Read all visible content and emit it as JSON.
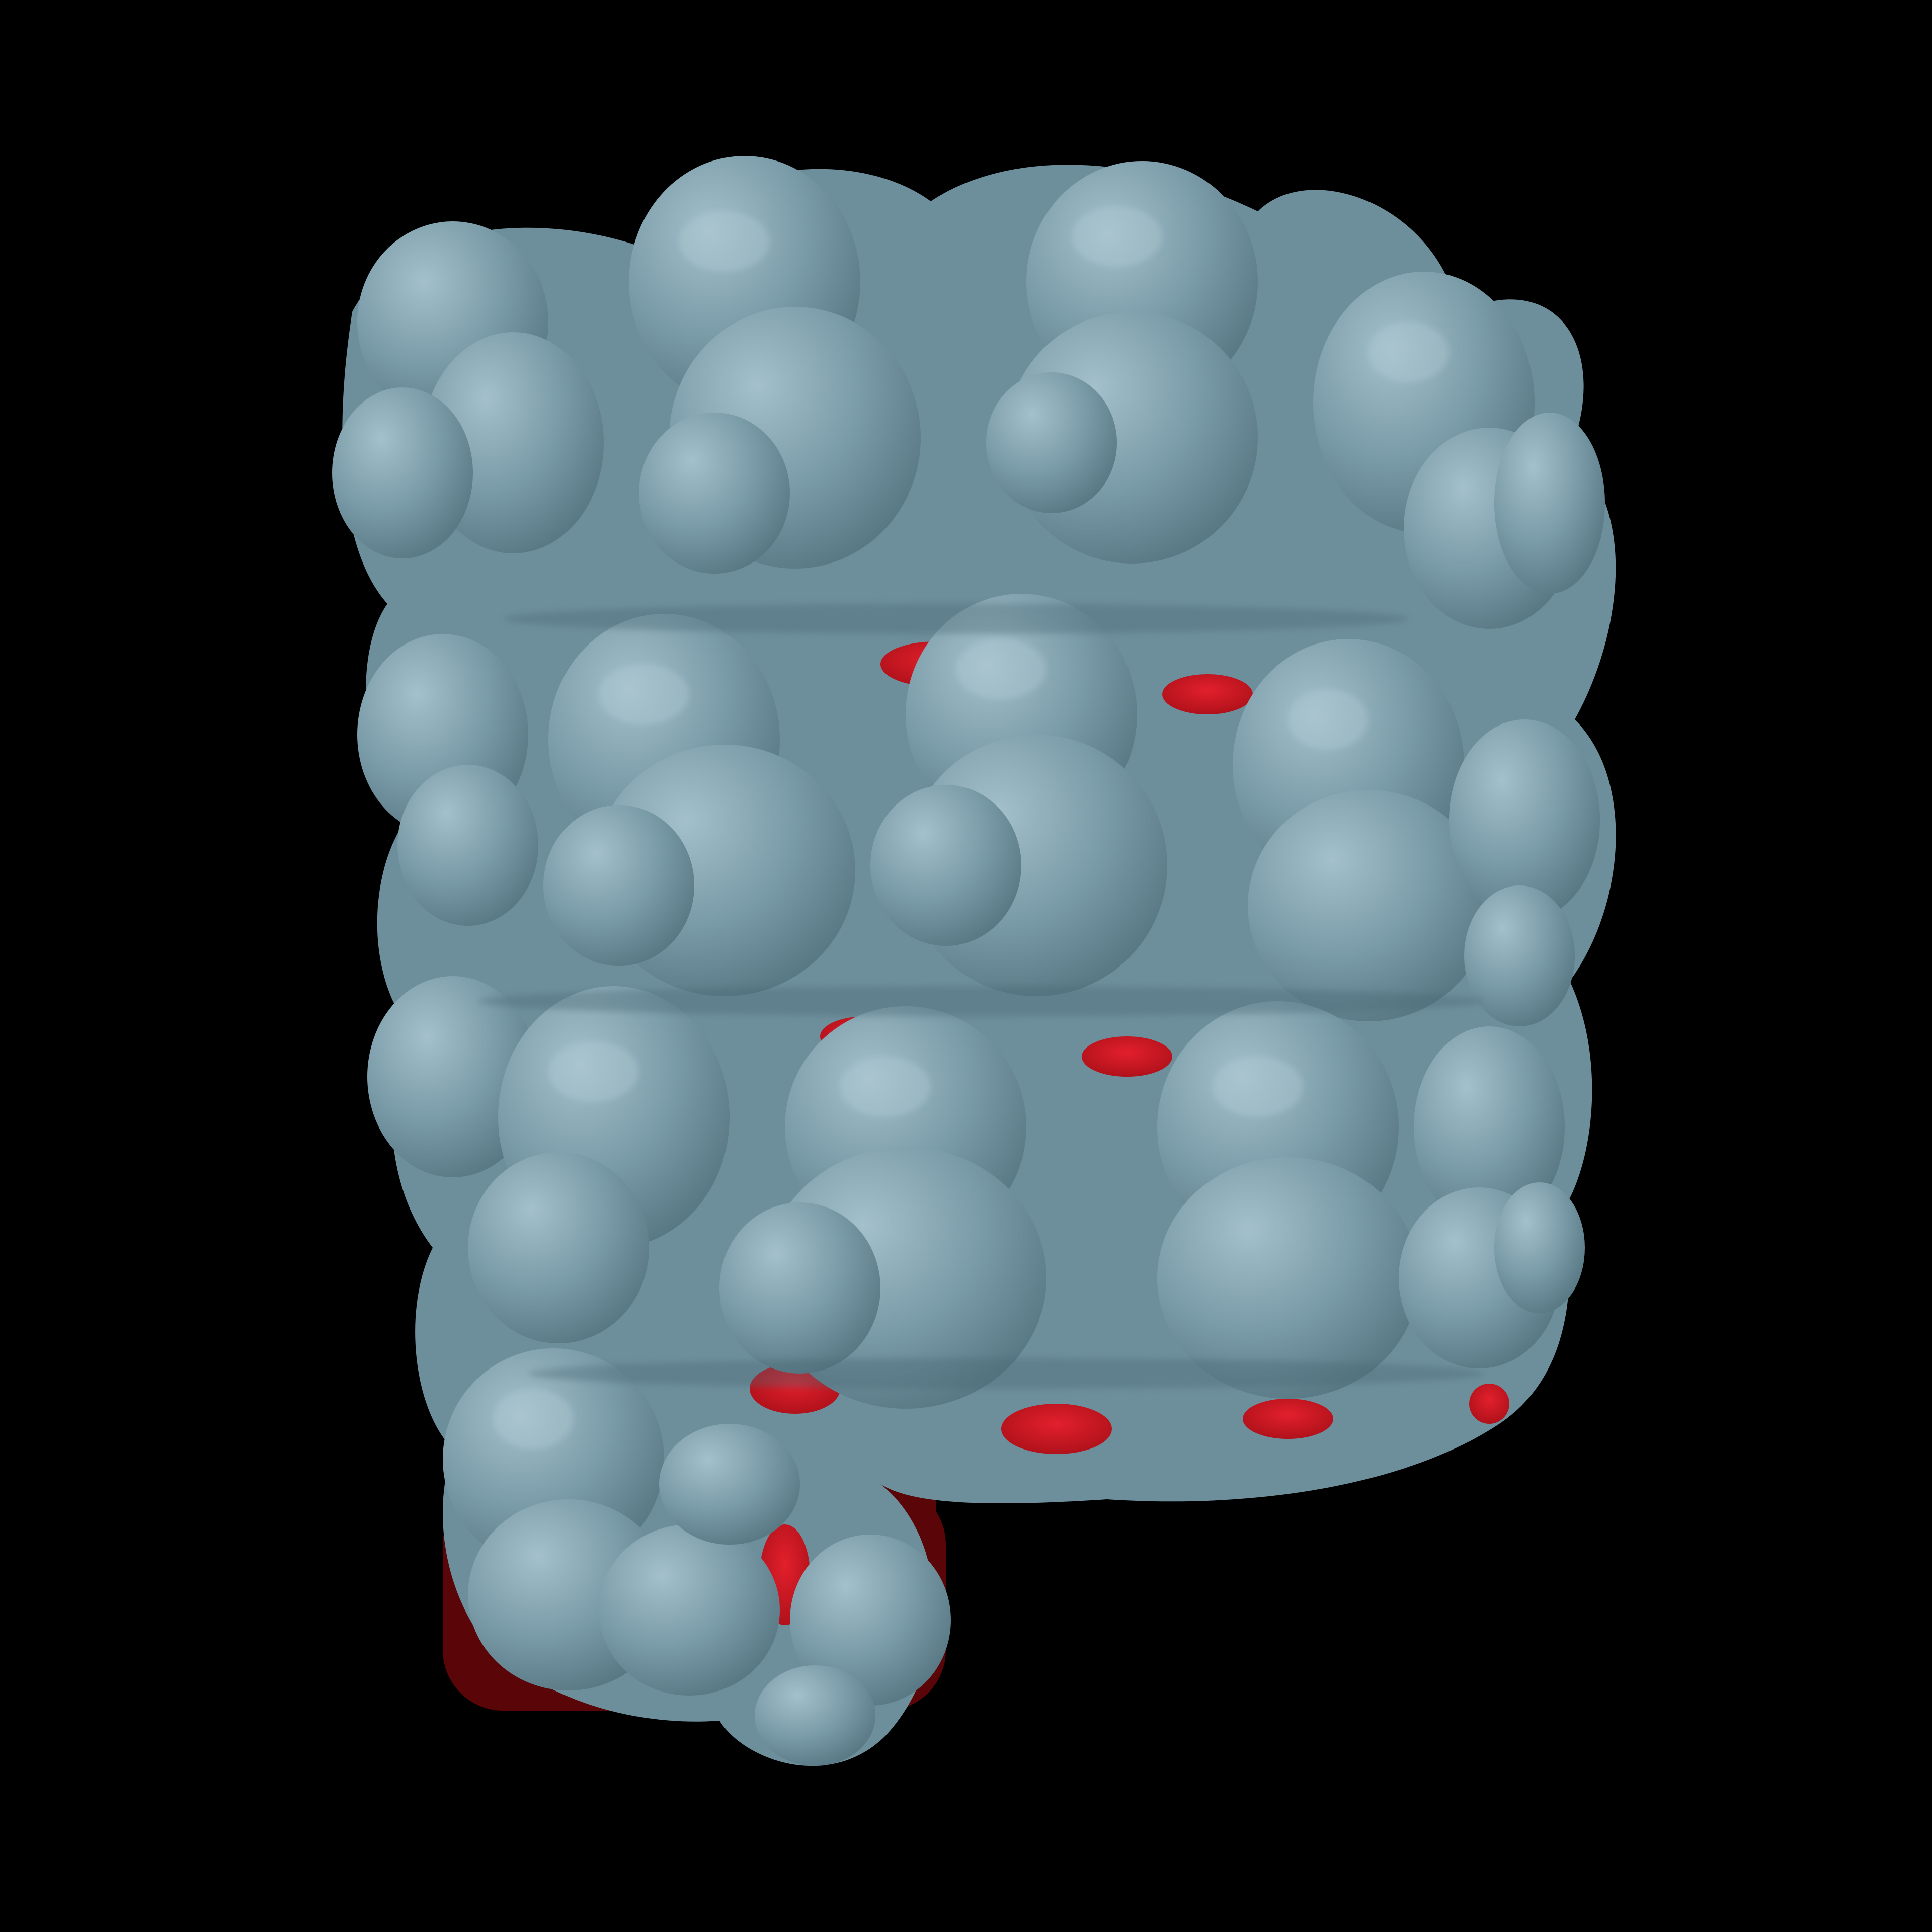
{
  "scene": {
    "background_color": "#000000",
    "subject": "molecular-surface",
    "surface_color": "#7a9ba8",
    "surface_highlight_color": "#9ab8c4",
    "surface_shadow_color": "#4e6c78",
    "cavity_color": "#c8141e",
    "cavity_dark_color": "#5a0507"
  }
}
